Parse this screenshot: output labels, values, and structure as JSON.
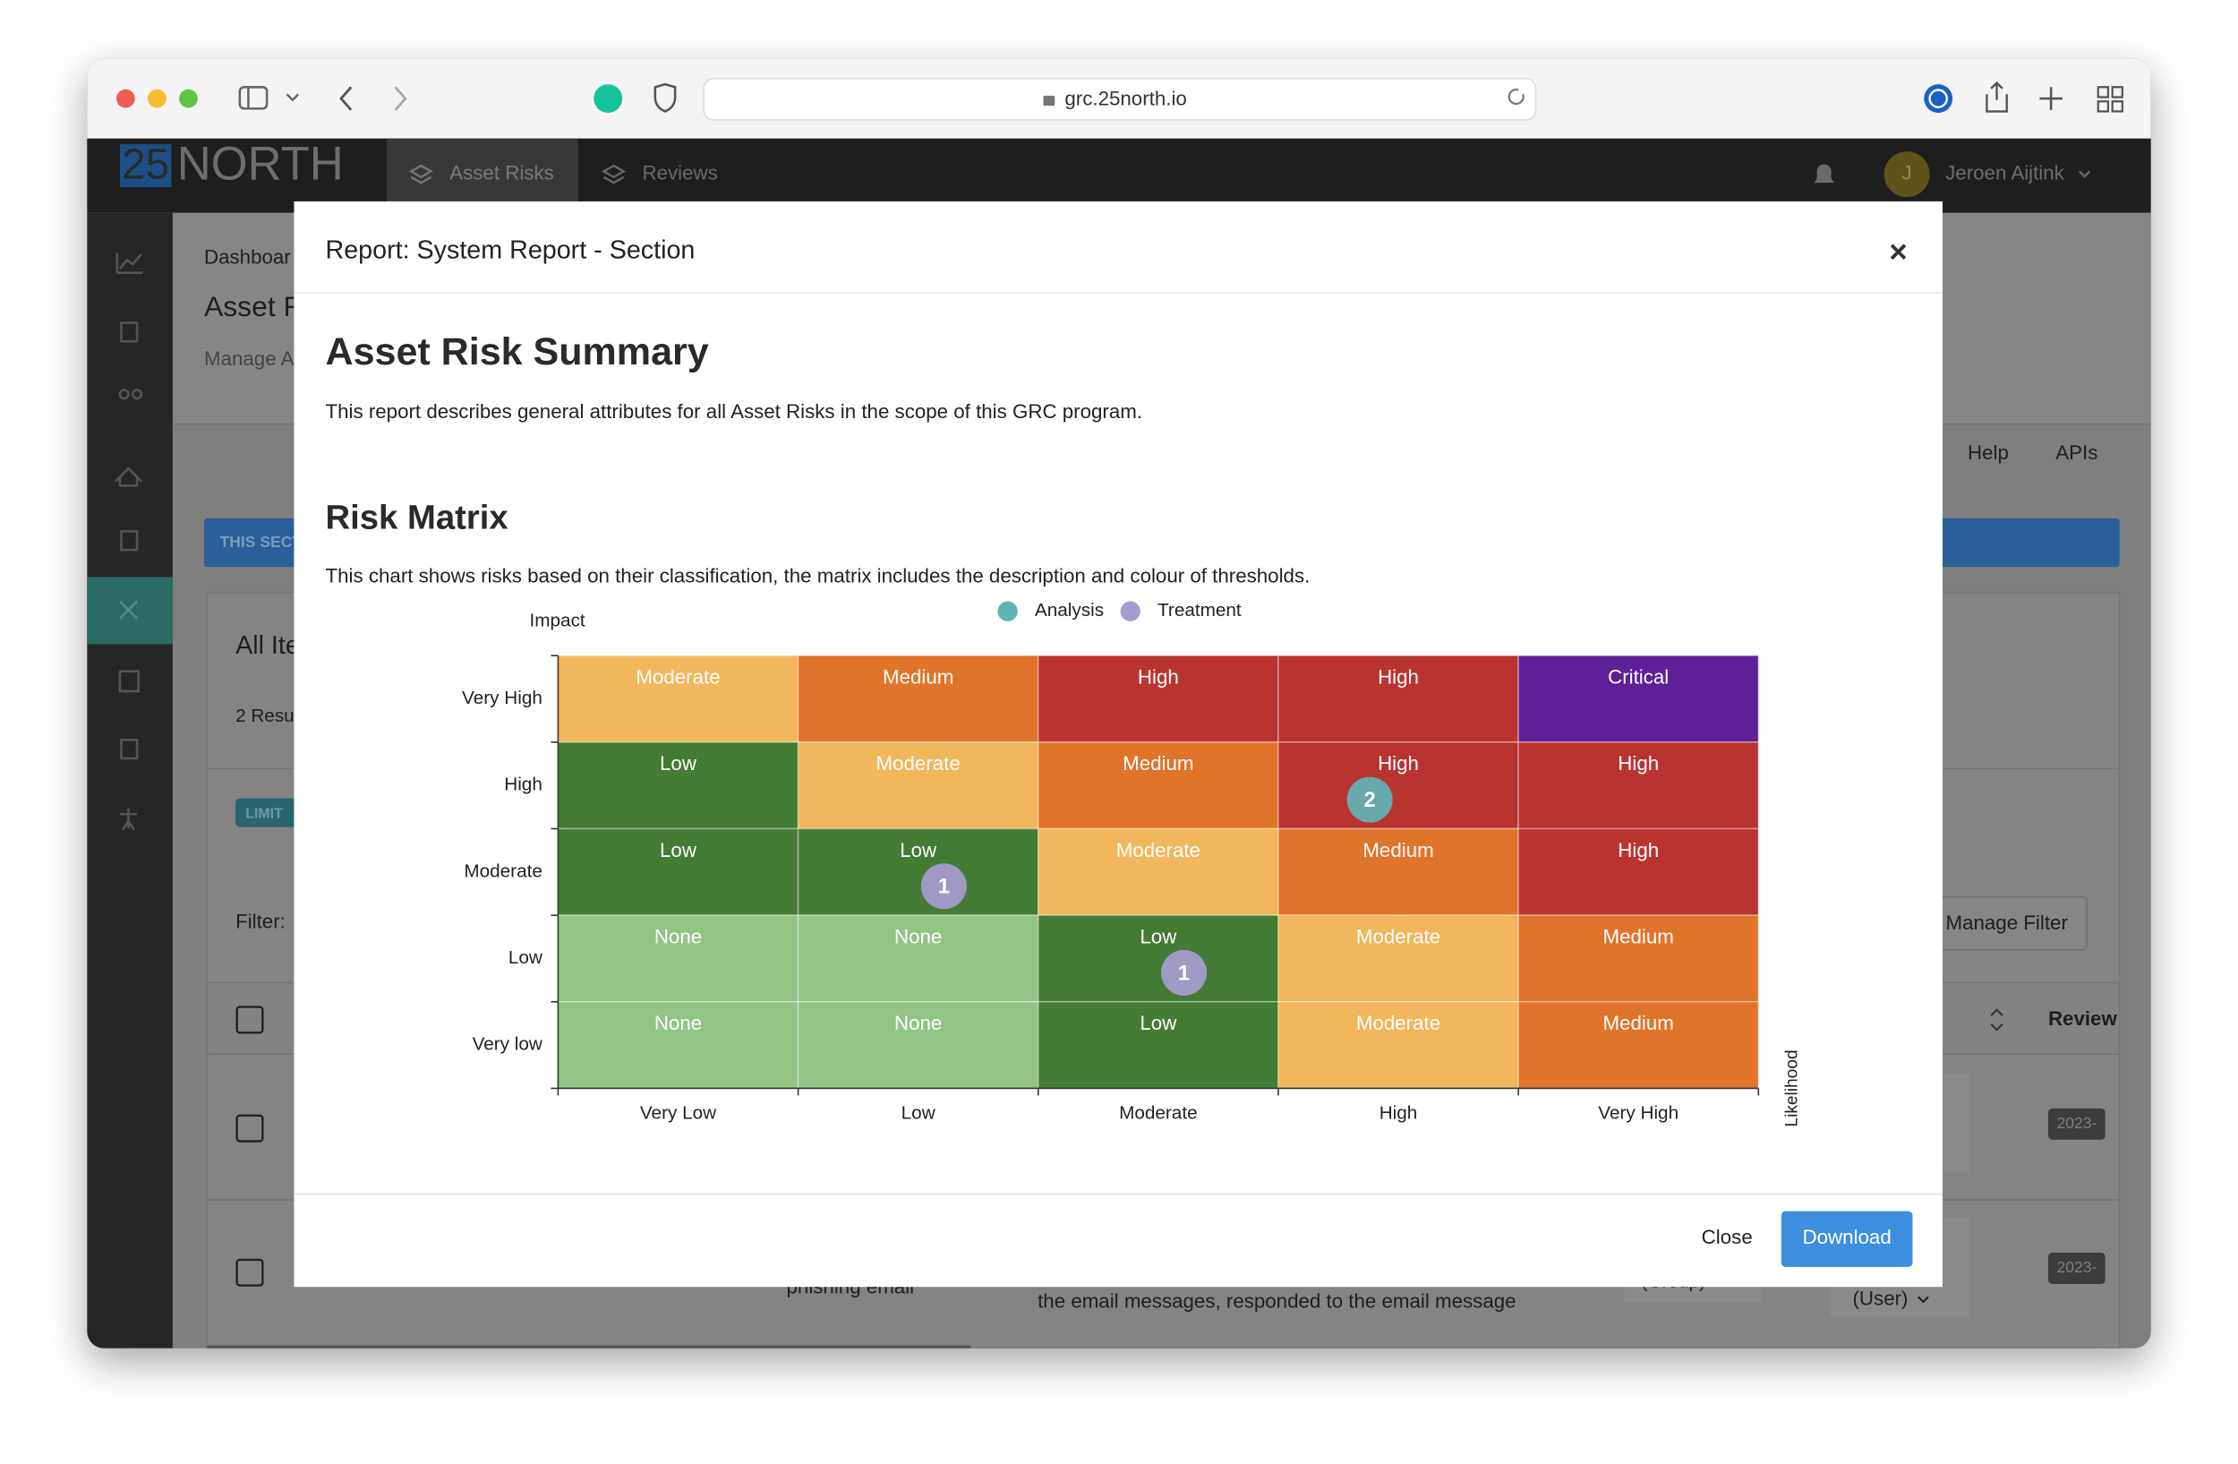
{
  "browser": {
    "url": "grc.25north.io"
  },
  "nav": {
    "logo_number": "25",
    "logo_text": "NORTH",
    "tabs": [
      "Asset Risks",
      "Reviews"
    ],
    "avatar": "J",
    "user": "Jeroen Aijtink"
  },
  "background": {
    "breadcrumb": "Dashboar",
    "page_title": "Asset R",
    "page_subtitle": "Manage A",
    "links": [
      "Help",
      "APIs"
    ],
    "section_bar": "THIS SECT",
    "card_title": "All Ite",
    "results": "2 Resu",
    "limit_badge": "LIMIT",
    "filter_label": "Filter:",
    "manage_filter": "Manage Filter",
    "review_header": "Review",
    "dates": [
      "2023-",
      "2023-"
    ],
    "row_texts": [
      "phishing email",
      "the email messages, responded to the email message",
      "(Group)",
      "(User)"
    ]
  },
  "modal": {
    "title": "Report: System Report - Section",
    "close_icon": "×",
    "heading": "Asset Risk Summary",
    "description": "This report describes general attributes for all Asset Risks in the scope of this GRC program.",
    "buttons": [
      "Close",
      "Download"
    ]
  },
  "chart_data": {
    "type": "heatmap",
    "title": "Risk Matrix",
    "description": "This chart shows risks based on their classification, the matrix includes the description and colour of thresholds.",
    "y_label": "Impact",
    "x_label": "Likelihood",
    "categories": [
      "Very Low",
      "Low",
      "Moderate",
      "High",
      "Very High"
    ],
    "y_categories": [
      "Very High",
      "High",
      "Moderate",
      "Low",
      "Very low"
    ],
    "cells": [
      [
        {
          "label": "Moderate",
          "color": "#f2b65c"
        },
        {
          "label": "Medium",
          "color": "#e0742a"
        },
        {
          "label": "High",
          "color": "#b93431"
        },
        {
          "label": "High",
          "color": "#b93431"
        },
        {
          "label": "Critical",
          "color": "#5e1f98"
        }
      ],
      [
        {
          "label": "Low",
          "color": "#447b35"
        },
        {
          "label": "Moderate",
          "color": "#f2b65c"
        },
        {
          "label": "Medium",
          "color": "#e0742a"
        },
        {
          "label": "High",
          "color": "#b93431"
        },
        {
          "label": "High",
          "color": "#b93431"
        }
      ],
      [
        {
          "label": "Low",
          "color": "#447b35"
        },
        {
          "label": "Low",
          "color": "#447b35"
        },
        {
          "label": "Moderate",
          "color": "#f2b65c"
        },
        {
          "label": "Medium",
          "color": "#e0742a"
        },
        {
          "label": "High",
          "color": "#b93431"
        }
      ],
      [
        {
          "label": "None",
          "color": "#91c485"
        },
        {
          "label": "None",
          "color": "#91c485"
        },
        {
          "label": "Low",
          "color": "#447b35"
        },
        {
          "label": "Moderate",
          "color": "#f2b65c"
        },
        {
          "label": "Medium",
          "color": "#e0742a"
        }
      ],
      [
        {
          "label": "None",
          "color": "#91c485"
        },
        {
          "label": "None",
          "color": "#91c485"
        },
        {
          "label": "Low",
          "color": "#447b35"
        },
        {
          "label": "Moderate",
          "color": "#f2b65c"
        },
        {
          "label": "Medium",
          "color": "#e0742a"
        }
      ]
    ],
    "series": [
      {
        "name": "Analysis",
        "color": "#5fb3b6",
        "points": [
          {
            "x": "High",
            "y": "High",
            "value": 2
          }
        ]
      },
      {
        "name": "Treatment",
        "color": "#a69ccf",
        "points": [
          {
            "x": "Low",
            "y": "Moderate",
            "value": 1
          },
          {
            "x": "Moderate",
            "y": "Low",
            "value": 1
          }
        ]
      }
    ],
    "legend": "top"
  }
}
